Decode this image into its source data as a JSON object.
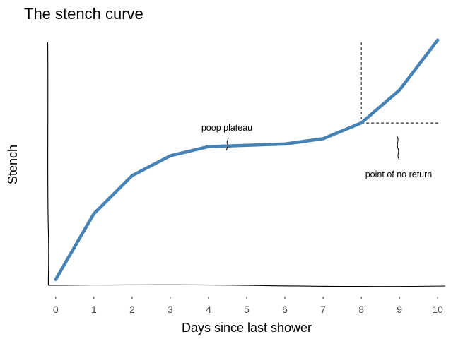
{
  "chart_data": {
    "type": "line",
    "title": "The stench curve",
    "xlabel": "Days since last shower",
    "ylabel": "Stench",
    "x": [
      0,
      1,
      2,
      3,
      4,
      5,
      6,
      7,
      8,
      9,
      10
    ],
    "series": [
      {
        "values": [
          0.2,
          5.2,
          8.1,
          9.6,
          10.3,
          10.4,
          10.5,
          10.9,
          12.1,
          14.6,
          18.4
        ]
      }
    ],
    "xlim": [
      -0.2,
      10.2
    ],
    "ylim": [
      -0.3,
      19.3
    ],
    "x_ticks": [
      "0",
      "1",
      "2",
      "3",
      "4",
      "5",
      "6",
      "7",
      "8",
      "9",
      "10"
    ],
    "y_ticks_shown": false,
    "grid": false,
    "line_color": "#4682b4",
    "style": "xkcd hand-drawn",
    "annotations": [
      {
        "text": "poop plateau",
        "x": 4.5,
        "y": 10.3
      },
      {
        "text": "point of no return",
        "x": 8,
        "y": 12.1
      }
    ]
  }
}
